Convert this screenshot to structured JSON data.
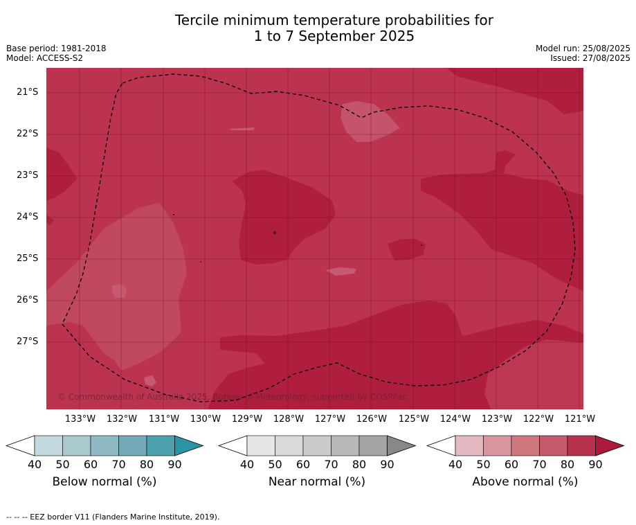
{
  "title_line1": "Tercile minimum temperature probabilities for",
  "title_line2": "1 to 7 September 2025",
  "base_period": "Base period: 1981-2018",
  "model": "Model: ACCESS-S2",
  "model_run": "Model run: 25/08/2025",
  "issued": "Issued: 27/08/2025",
  "latitude_labels": [
    "21°S",
    "22°S",
    "23°S",
    "24°S",
    "25°S",
    "26°S",
    "27°S"
  ],
  "longitude_labels": [
    "133°W",
    "132°W",
    "131°W",
    "130°W",
    "129°W",
    "128°W",
    "127°W",
    "126°W",
    "125°W",
    "124°W",
    "123°W",
    "122°W",
    "121°W"
  ],
  "copyright": "© Commonwealth of Australia 2025, Bureau of Meteorology, supported by COSPPac",
  "colorbars": [
    {
      "label": "Below normal (%)",
      "ticks": [
        "40",
        "50",
        "60",
        "70",
        "80",
        "90"
      ],
      "colors": [
        "#c2d8dd",
        "#aac9cf",
        "#8fb9c3",
        "#72aab7",
        "#4c9fad",
        "#2a93a4"
      ]
    },
    {
      "label": "Near normal (%)",
      "ticks": [
        "40",
        "50",
        "60",
        "70",
        "80",
        "90"
      ],
      "colors": [
        "#e6e6e6",
        "#d9d9d9",
        "#cbcbcb",
        "#b9b9b9",
        "#a3a3a3",
        "#888888"
      ]
    },
    {
      "label": "Above normal (%)",
      "ticks": [
        "40",
        "50",
        "60",
        "70",
        "80",
        "90"
      ],
      "colors": [
        "#e3b8c0",
        "#d9959f",
        "#d07880",
        "#c45a6c",
        "#b8324d",
        "#ab1a3c"
      ]
    }
  ],
  "footnote": "--  --  -- EEZ border V11 (Flanders Marine Institute, 2019)."
}
